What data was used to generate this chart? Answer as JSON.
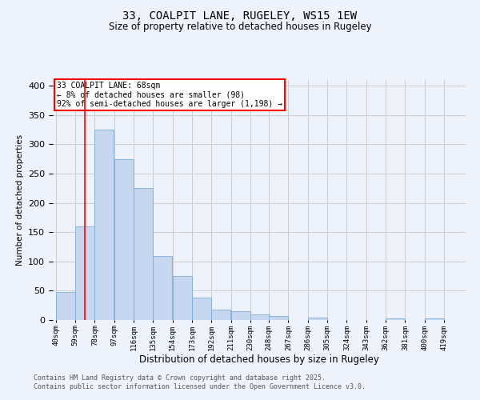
{
  "title1": "33, COALPIT LANE, RUGELEY, WS15 1EW",
  "title2": "Size of property relative to detached houses in Rugeley",
  "xlabel": "Distribution of detached houses by size in Rugeley",
  "ylabel": "Number of detached properties",
  "footer1": "Contains HM Land Registry data © Crown copyright and database right 2025.",
  "footer2": "Contains public sector information licensed under the Open Government Licence v3.0.",
  "annotation_line1": "33 COALPIT LANE: 68sqm",
  "annotation_line2": "← 8% of detached houses are smaller (98)",
  "annotation_line3": "92% of semi-detached houses are larger (1,198) →",
  "bins": [
    40,
    59,
    78,
    97,
    116,
    135,
    154,
    173,
    192,
    211,
    230,
    248,
    267,
    286,
    305,
    324,
    343,
    362,
    381,
    400,
    419
  ],
  "values": [
    48,
    160,
    325,
    275,
    225,
    110,
    75,
    38,
    18,
    15,
    10,
    7,
    0,
    4,
    0,
    0,
    0,
    3,
    0,
    3,
    0
  ],
  "bar_color": "#c5d8f0",
  "bar_edge_color": "#7bafd4",
  "red_line_x": 68,
  "ylim": [
    0,
    410
  ],
  "yticks": [
    0,
    50,
    100,
    150,
    200,
    250,
    300,
    350,
    400
  ],
  "grid_color": "#cccccc",
  "background_color": "#eef2fa"
}
